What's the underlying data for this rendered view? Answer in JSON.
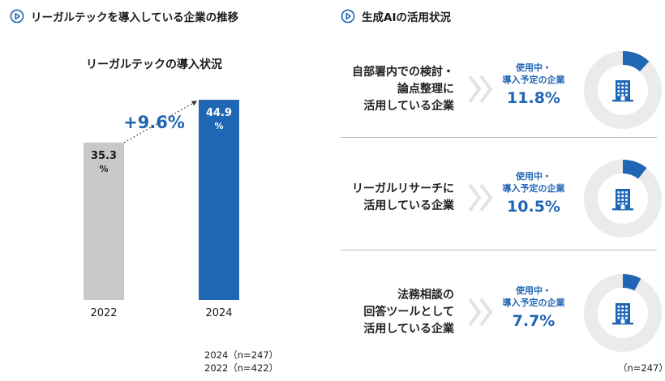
{
  "left": {
    "section_title": "リーガルテックを導入している企業の推移",
    "notes": [
      "2024（n=247）",
      "2022（n=422）"
    ]
  },
  "right": {
    "section_title": "生成AIの活用状況",
    "items": [
      {
        "label_lines": [
          "自部署内での検討・",
          "論点整理に",
          "活用している企業"
        ],
        "caption_lines": [
          "使用中・",
          "導入予定の企業"
        ],
        "value": "11.8%",
        "pct": 11.8
      },
      {
        "label_lines": [
          "リーガルリサーチに",
          "活用している企業"
        ],
        "caption_lines": [
          "使用中・",
          "導入予定の企業"
        ],
        "value": "10.5%",
        "pct": 10.5
      },
      {
        "label_lines": [
          "法務相談の",
          "回答ツールとして",
          "活用している企業"
        ],
        "caption_lines": [
          "使用中・",
          "導入予定の企業"
        ],
        "value": "7.7%",
        "pct": 7.7
      }
    ],
    "n_note": "（n=247）"
  },
  "chart_data": {
    "type": "bar",
    "title": "リーガルテックの導入状況",
    "categories": [
      "2022",
      "2024"
    ],
    "values": [
      35.3,
      44.9
    ],
    "value_labels": [
      [
        "35.3",
        "%"
      ],
      [
        "44.9",
        "%"
      ]
    ],
    "difference_label": "+9.6%",
    "ylim": [
      0,
      50
    ],
    "xlabel": "",
    "ylabel": "",
    "colors": [
      "#c8c8c8",
      "#1f66b5"
    ],
    "label_colors": [
      "#1a1a1a",
      "#ffffff"
    ]
  },
  "colors": {
    "accent": "#1f66b5",
    "track": "#ebebeb",
    "gray_bar": "#c8c8c8",
    "chevron": "#e3e3e3"
  }
}
